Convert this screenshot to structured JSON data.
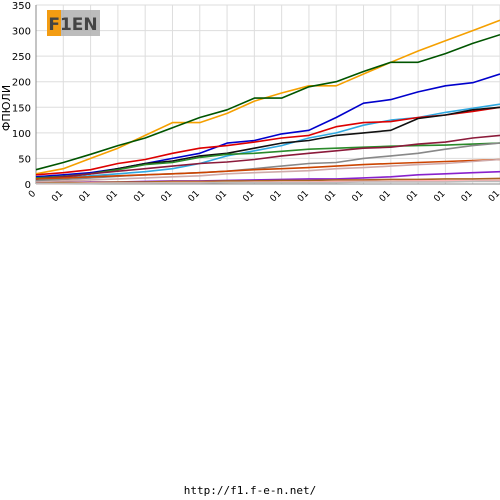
{
  "logo_text": "F1EN",
  "footer": {
    "url": "http://f1.f-e-n.net/"
  },
  "chart_data": {
    "type": "line",
    "ylabel": "ФПЮЛИ",
    "ylim": [
      0,
      350
    ],
    "yticks": [
      0,
      50,
      100,
      150,
      200,
      250,
      300,
      350
    ],
    "categories": [
      "0",
      "01",
      "01",
      "01",
      "01",
      "01",
      "01",
      "01",
      "01",
      "01",
      "01",
      "01",
      "01",
      "01",
      "01",
      "01",
      "01",
      "01"
    ],
    "grid": true,
    "series": [
      {
        "color": "#f5a000",
        "values": [
          20,
          30,
          50,
          70,
          95,
          120,
          120,
          138,
          162,
          178,
          192,
          192,
          215,
          238,
          260,
          280,
          300,
          320
        ]
      },
      {
        "color": "#005500",
        "values": [
          28,
          42,
          58,
          75,
          90,
          110,
          130,
          145,
          168,
          168,
          190,
          200,
          220,
          238,
          238,
          255,
          275,
          292
        ]
      },
      {
        "color": "#0000cc",
        "values": [
          14,
          18,
          22,
          30,
          40,
          50,
          60,
          80,
          85,
          98,
          105,
          130,
          158,
          165,
          180,
          192,
          198,
          215
        ]
      },
      {
        "color": "#2fa8e0",
        "values": [
          8,
          12,
          16,
          20,
          24,
          30,
          40,
          55,
          65,
          75,
          90,
          100,
          115,
          125,
          130,
          140,
          148,
          156
        ]
      },
      {
        "color": "#dd0000",
        "values": [
          18,
          22,
          28,
          40,
          48,
          60,
          70,
          75,
          82,
          90,
          95,
          112,
          120,
          122,
          130,
          135,
          142,
          150
        ]
      },
      {
        "color": "#111111",
        "values": [
          10,
          14,
          20,
          30,
          40,
          45,
          55,
          60,
          70,
          80,
          85,
          95,
          100,
          105,
          128,
          135,
          145,
          150
        ]
      },
      {
        "color": "#2a8a2a",
        "values": [
          12,
          15,
          20,
          28,
          38,
          42,
          52,
          58,
          60,
          64,
          68,
          70,
          72,
          74,
          75,
          76,
          78,
          80
        ]
      },
      {
        "color": "#8b1a3a",
        "values": [
          10,
          14,
          20,
          25,
          30,
          35,
          40,
          43,
          48,
          55,
          60,
          65,
          70,
          72,
          78,
          82,
          90,
          95
        ]
      },
      {
        "color": "#888888",
        "values": [
          6,
          9,
          12,
          15,
          18,
          20,
          22,
          25,
          30,
          35,
          40,
          42,
          50,
          55,
          60,
          68,
          75,
          80
        ]
      },
      {
        "color": "#cc4400",
        "values": [
          10,
          12,
          14,
          16,
          18,
          20,
          22,
          25,
          28,
          30,
          32,
          35,
          38,
          40,
          42,
          44,
          46,
          48
        ]
      },
      {
        "color": "#cfaaaa",
        "values": [
          4,
          6,
          8,
          10,
          12,
          14,
          16,
          20,
          22,
          24,
          26,
          30,
          32,
          35,
          38,
          40,
          44,
          48
        ]
      },
      {
        "color": "#8822cc",
        "values": [
          2,
          3,
          4,
          4,
          5,
          6,
          6,
          7,
          8,
          9,
          10,
          10,
          12,
          14,
          18,
          20,
          22,
          24
        ]
      },
      {
        "color": "#aa6622",
        "values": [
          2,
          3,
          3,
          4,
          4,
          5,
          5,
          6,
          6,
          7,
          7,
          8,
          8,
          9,
          9,
          10,
          10,
          11
        ]
      },
      {
        "color": "#ffaaaa",
        "values": [
          1,
          1,
          2,
          2,
          2,
          3,
          3,
          3,
          4,
          4,
          4,
          5,
          5,
          5,
          6,
          6,
          6,
          7
        ]
      },
      {
        "color": "#bbbbbb",
        "values": [
          1,
          1,
          1,
          2,
          2,
          2,
          2,
          3,
          3,
          3,
          3,
          3,
          4,
          4,
          4,
          4,
          5,
          5
        ]
      }
    ]
  }
}
